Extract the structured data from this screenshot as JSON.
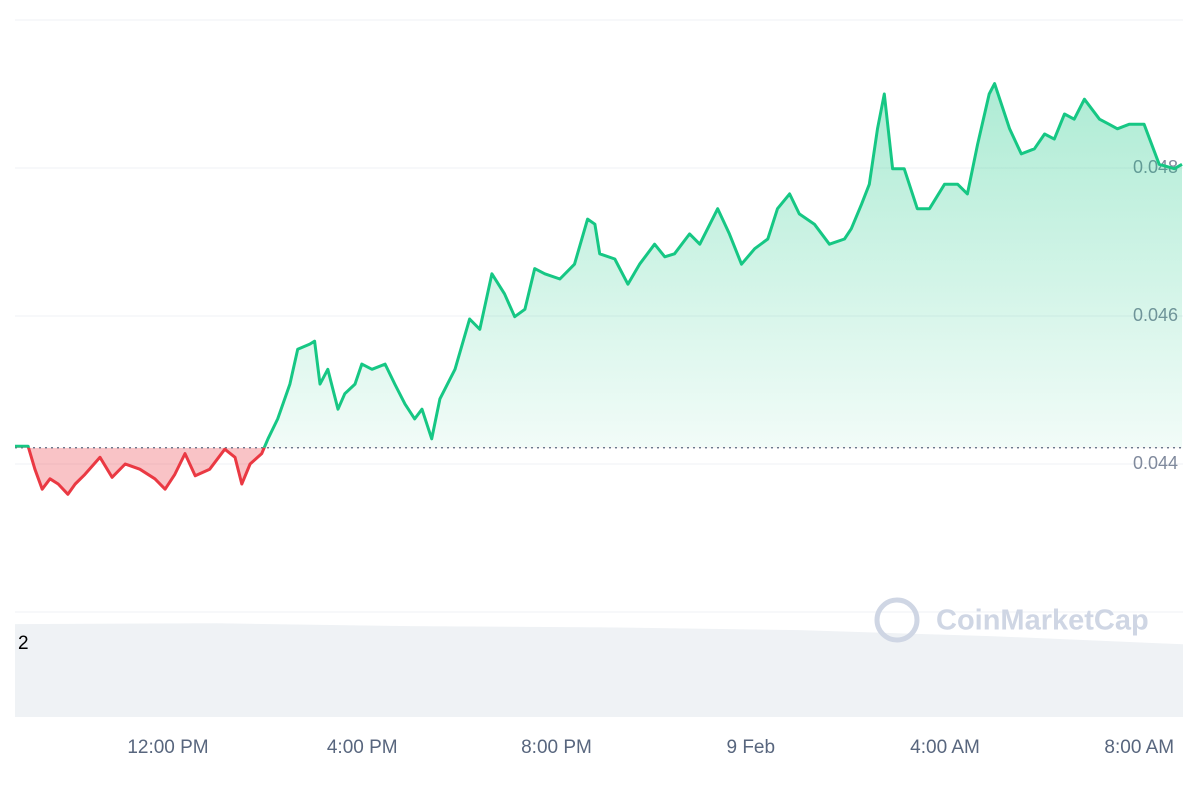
{
  "chart_data": {
    "type": "line",
    "x": [
      8.85,
      9.12,
      9.26,
      9.41,
      9.57,
      9.74,
      9.94,
      10.09,
      10.29,
      10.6,
      10.85,
      11.12,
      11.42,
      11.73,
      11.94,
      12.14,
      12.35,
      12.56,
      12.86,
      13.17,
      13.38,
      13.52,
      13.69,
      13.93,
      14.06,
      14.26,
      14.51,
      14.67,
      14.92,
      15.02,
      15.13,
      15.29,
      15.5,
      15.64,
      15.85,
      15.99,
      16.2,
      16.47,
      16.67,
      16.88,
      17.08,
      17.23,
      17.43,
      17.6,
      17.91,
      18.21,
      18.42,
      18.67,
      18.93,
      19.14,
      19.35,
      19.55,
      19.76,
      20.07,
      20.37,
      20.64,
      20.79,
      20.89,
      21.2,
      21.47,
      21.71,
      22.02,
      22.23,
      22.43,
      22.74,
      22.95,
      23.32,
      23.56,
      23.81,
      24.08,
      24.35,
      24.55,
      24.8,
      25.0,
      25.31,
      25.62,
      25.93,
      26.07,
      26.28,
      26.44,
      26.61,
      26.75,
      26.92,
      27.16,
      27.43,
      27.68,
      27.99,
      28.26,
      28.46,
      28.67,
      28.91,
      29.02,
      29.33,
      29.57,
      29.84,
      30.05,
      30.25,
      30.46,
      30.66,
      30.87,
      31.18,
      31.38,
      31.55,
      31.79,
      32.1,
      32.41,
      32.72,
      32.88
    ],
    "values": [
      0.04424,
      0.04424,
      0.04393,
      0.04366,
      0.0438,
      0.04373,
      0.04359,
      0.04373,
      0.04386,
      0.04409,
      0.04382,
      0.044,
      0.04393,
      0.0438,
      0.04366,
      0.04386,
      0.04414,
      0.04384,
      0.04393,
      0.0442,
      0.04409,
      0.04373,
      0.044,
      0.04414,
      0.04434,
      0.04461,
      0.04508,
      0.04555,
      0.04562,
      0.04566,
      0.04508,
      0.04528,
      0.04474,
      0.04495,
      0.04508,
      0.04535,
      0.04528,
      0.04535,
      0.04508,
      0.04481,
      0.04461,
      0.04474,
      0.04434,
      0.04488,
      0.04528,
      0.04596,
      0.04582,
      0.04657,
      0.0463,
      0.04599,
      0.04609,
      0.04664,
      0.04657,
      0.0465,
      0.0467,
      0.04731,
      0.04724,
      0.04684,
      0.04677,
      0.04643,
      0.0467,
      0.04697,
      0.0468,
      0.04684,
      0.04711,
      0.04697,
      0.04745,
      0.04711,
      0.0467,
      0.04691,
      0.04704,
      0.04745,
      0.04765,
      0.04738,
      0.04724,
      0.04697,
      0.04704,
      0.04718,
      0.04751,
      0.04778,
      0.04853,
      0.049,
      0.04799,
      0.04799,
      0.04745,
      0.04745,
      0.04778,
      0.04778,
      0.04765,
      0.04832,
      0.049,
      0.04914,
      0.04853,
      0.04819,
      0.04826,
      0.04846,
      0.04839,
      0.04873,
      0.04866,
      0.04893,
      0.04866,
      0.04859,
      0.04853,
      0.04859,
      0.04859,
      0.04805,
      0.04799,
      0.04805
    ],
    "baseline": 0.04422,
    "up_color": "#16c784",
    "down_color": "#ea3943",
    "xlim": [
      8.85,
      32.9
    ],
    "xticks": [
      {
        "value": 12,
        "label": "12:00 PM"
      },
      {
        "value": 16,
        "label": "4:00 PM"
      },
      {
        "value": 20,
        "label": "8:00 PM"
      },
      {
        "value": 24,
        "label": "9 Feb"
      },
      {
        "value": 28,
        "label": "4:00 AM"
      },
      {
        "value": 32,
        "label": "8:00 AM"
      }
    ],
    "ylim": [
      0.042,
      0.05
    ],
    "yticks": [
      0.044,
      0.046,
      0.048
    ],
    "grid": true,
    "volume": {
      "x": [
        8.85,
        13,
        17,
        21,
        25,
        29,
        32.9
      ],
      "values": [
        2.3,
        2.32,
        2.25,
        2.22,
        2.15,
        2.0,
        1.8
      ],
      "ylim": [
        0,
        2.6
      ],
      "yticks": [
        2
      ],
      "color": "#eff2f5"
    },
    "watermark": "CoinMarketCap"
  }
}
